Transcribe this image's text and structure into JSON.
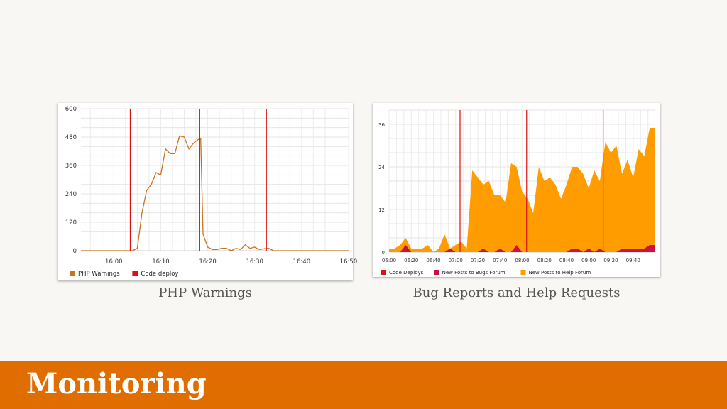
{
  "slide": {
    "title": "Monitoring",
    "colors": {
      "background": "#f8f7f4",
      "footer": "#e06d00",
      "footer_text": "#ffffff"
    }
  },
  "chart_data": [
    {
      "type": "line",
      "caption": "PHP Warnings",
      "x_ticks": [
        "16:00",
        "16:10",
        "16:20",
        "16:30",
        "16:40",
        "16:50"
      ],
      "x_tick_minutes": [
        0,
        10,
        20,
        30,
        40,
        50
      ],
      "xlim_minutes": [
        -7,
        50
      ],
      "y_ticks": [
        0,
        120,
        240,
        360,
        480,
        600
      ],
      "ylim": [
        0,
        600
      ],
      "grid": true,
      "legend": "bottom-left",
      "series": [
        {
          "name": "PHP Warnings",
          "color": "#c8731e",
          "minutes": [
            -7,
            4,
            5,
            6,
            7,
            8,
            9,
            10,
            11,
            12,
            13,
            14,
            15,
            16,
            17,
            18,
            18.5,
            19,
            20,
            21,
            22,
            23,
            24,
            25,
            26,
            27,
            28,
            29,
            30,
            31,
            32,
            33,
            34,
            50
          ],
          "values": [
            0,
            0,
            10,
            160,
            255,
            280,
            330,
            320,
            430,
            410,
            410,
            485,
            480,
            430,
            455,
            470,
            475,
            70,
            15,
            5,
            5,
            10,
            10,
            0,
            10,
            5,
            25,
            10,
            15,
            5,
            8,
            10,
            0,
            0
          ]
        }
      ],
      "events": {
        "name": "Code deploy",
        "color": "#dd1111",
        "minutes": [
          3.5,
          18.3,
          32.5
        ]
      }
    },
    {
      "type": "area",
      "caption": "Bug Reports and Help Requests",
      "x_ticks": [
        "06:00",
        "06:20",
        "06:40",
        "07:00",
        "07:20",
        "07:40",
        "08:00",
        "08:20",
        "08:40",
        "09:00",
        "09:20",
        "09:40"
      ],
      "x_tick_minutes": [
        0,
        20,
        40,
        60,
        80,
        100,
        120,
        140,
        160,
        180,
        200,
        220
      ],
      "xlim_minutes": [
        0,
        240
      ],
      "y_ticks": [
        0,
        12,
        24,
        36
      ],
      "ylim": [
        0,
        40
      ],
      "grid": true,
      "legend": "bottom-left",
      "series": [
        {
          "name": "New Posts to Help Forum",
          "color": "#ff9c00",
          "minutes": [
            0,
            5,
            10,
            15,
            20,
            25,
            30,
            35,
            40,
            45,
            50,
            55,
            60,
            65,
            70,
            75,
            80,
            85,
            90,
            95,
            100,
            105,
            110,
            115,
            120,
            125,
            130,
            135,
            140,
            145,
            150,
            155,
            160,
            165,
            170,
            175,
            180,
            185,
            190,
            195,
            200,
            205,
            210,
            215,
            220,
            225,
            230,
            235,
            240
          ],
          "values": [
            1,
            1,
            2,
            4,
            1,
            1,
            1,
            2,
            0,
            1,
            5,
            1,
            2,
            3,
            1,
            23,
            21,
            19,
            20,
            16,
            16,
            14,
            25,
            24,
            17,
            15,
            11,
            24,
            20,
            21,
            19,
            15,
            19,
            24,
            24,
            22,
            18,
            23,
            20,
            31,
            28,
            30,
            22,
            26,
            21,
            29,
            27,
            35,
            35
          ]
        },
        {
          "name": "New Posts to Bugs Forum",
          "color": "#cc1040",
          "minutes": [
            0,
            10,
            15,
            20,
            25,
            50,
            55,
            60,
            80,
            85,
            90,
            95,
            100,
            105,
            110,
            115,
            120,
            125,
            160,
            165,
            170,
            175,
            180,
            185,
            190,
            195,
            200,
            205,
            210,
            215,
            220,
            225,
            230,
            235,
            240
          ],
          "values": [
            0,
            0,
            2,
            0,
            0,
            0,
            1,
            0,
            0,
            1,
            0,
            0,
            1,
            0,
            0,
            2,
            0,
            0,
            0,
            1,
            1,
            0,
            1,
            0,
            1,
            0,
            0,
            0,
            1,
            1,
            1,
            1,
            1,
            2,
            2
          ]
        }
      ],
      "events": {
        "name": "Code Deploys",
        "color": "#dd1111",
        "minutes": [
          64,
          124,
          193
        ]
      }
    }
  ]
}
